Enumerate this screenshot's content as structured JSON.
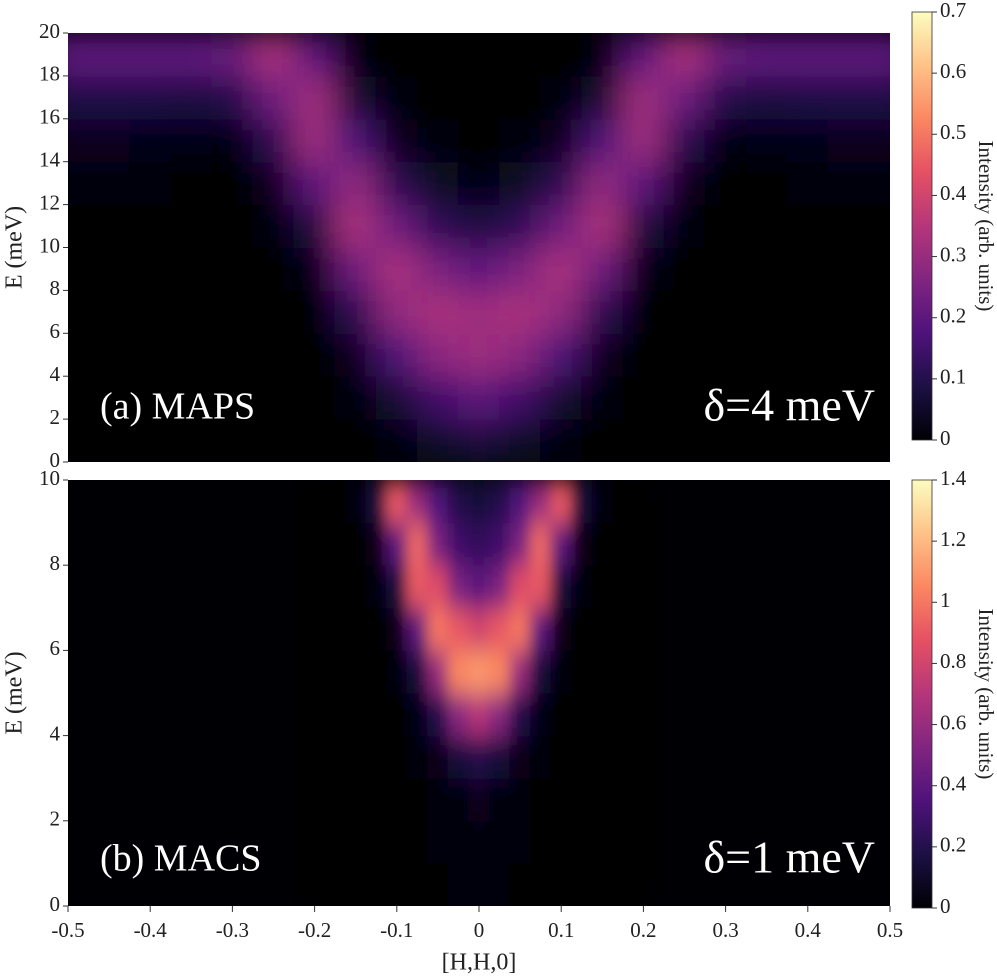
{
  "chart_data": [
    {
      "type": "heatmap",
      "annotation": "(a) MAPS",
      "resolution_label": "δ=4 meV",
      "ylabel": "E (meV)",
      "colorbar_label": "Intensity (arb. units)",
      "colormap": [
        "#000004",
        "#1c1044",
        "#4f127b",
        "#812581",
        "#b5367a",
        "#e55064",
        "#fb8761",
        "#fec287",
        "#fcfdbf"
      ],
      "xlim": [
        -0.5,
        0.5
      ],
      "ylim": [
        0,
        20
      ],
      "yticks": [
        0,
        2,
        4,
        6,
        8,
        10,
        12,
        14,
        16,
        18,
        20
      ],
      "clim": [
        0,
        0.7
      ],
      "cticks": [
        0,
        0.1,
        0.2,
        0.3,
        0.4,
        0.5,
        0.6,
        0.7
      ],
      "x": [
        -0.5,
        -0.45,
        -0.4,
        -0.35,
        -0.3,
        -0.25,
        -0.2,
        -0.15,
        -0.1,
        -0.05,
        0,
        0.05,
        0.1,
        0.15,
        0.2,
        0.25,
        0.3,
        0.35,
        0.4,
        0.45,
        0.5
      ],
      "y": [
        1,
        3,
        5,
        7,
        9,
        11,
        13,
        15,
        17,
        19
      ],
      "z": [
        [
          0,
          0,
          0,
          0,
          0,
          0,
          0,
          0,
          0.01,
          0.05,
          0.08,
          0.05,
          0.01,
          0,
          0,
          0,
          0,
          0,
          0,
          0,
          0
        ],
        [
          0,
          0,
          0,
          0,
          0,
          0,
          0,
          0.01,
          0.06,
          0.15,
          0.2,
          0.15,
          0.06,
          0.01,
          0,
          0,
          0,
          0,
          0,
          0,
          0
        ],
        [
          0,
          0,
          0,
          0,
          0,
          0,
          0,
          0.03,
          0.17,
          0.28,
          0.31,
          0.28,
          0.17,
          0.03,
          0,
          0,
          0,
          0,
          0,
          0,
          0
        ],
        [
          0,
          0,
          0,
          0,
          0,
          0,
          0,
          0.11,
          0.29,
          0.33,
          0.31,
          0.33,
          0.29,
          0.11,
          0,
          0,
          0,
          0,
          0,
          0,
          0
        ],
        [
          0,
          0,
          0,
          0,
          0,
          0,
          0.02,
          0.23,
          0.33,
          0.25,
          0.2,
          0.25,
          0.33,
          0.23,
          0.02,
          0,
          0,
          0,
          0,
          0,
          0
        ],
        [
          0,
          0,
          0,
          0,
          0,
          0.01,
          0.08,
          0.33,
          0.23,
          0.12,
          0.08,
          0.12,
          0.23,
          0.33,
          0.08,
          0.01,
          0,
          0,
          0,
          0,
          0
        ],
        [
          0.01,
          0.01,
          0.01,
          0,
          0,
          0.03,
          0.2,
          0.29,
          0.11,
          0.04,
          0.02,
          0.04,
          0.11,
          0.29,
          0.2,
          0.03,
          0,
          0,
          0.01,
          0.01,
          0.01
        ],
        [
          0.03,
          0.03,
          0.02,
          0.02,
          0.01,
          0.11,
          0.31,
          0.17,
          0.03,
          0.01,
          0,
          0.01,
          0.03,
          0.17,
          0.31,
          0.11,
          0.01,
          0.02,
          0.02,
          0.03,
          0.03
        ],
        [
          0.09,
          0.09,
          0.09,
          0.08,
          0.1,
          0.23,
          0.31,
          0.06,
          0.01,
          0,
          0,
          0,
          0.01,
          0.06,
          0.31,
          0.23,
          0.1,
          0.08,
          0.09,
          0.09,
          0.09
        ],
        [
          0.2,
          0.2,
          0.2,
          0.2,
          0.22,
          0.33,
          0.2,
          0.01,
          0,
          0,
          0,
          0,
          0,
          0.01,
          0.2,
          0.33,
          0.22,
          0.2,
          0.2,
          0.2,
          0.2
        ]
      ]
    },
    {
      "type": "heatmap",
      "annotation": "(b) MACS",
      "resolution_label": "δ=1 meV",
      "ylabel": "E (meV)",
      "xlabel": "[H,H,0]",
      "colorbar_label": "Intensity (arb. units)",
      "colormap": [
        "#000004",
        "#1c1044",
        "#4f127b",
        "#812581",
        "#b5367a",
        "#e55064",
        "#fb8761",
        "#fec287",
        "#fcfdbf"
      ],
      "xlim": [
        -0.5,
        0.5
      ],
      "ylim": [
        0,
        10
      ],
      "yticks": [
        0,
        2,
        4,
        6,
        8,
        10
      ],
      "xticks": [
        -0.5,
        -0.4,
        -0.3,
        -0.2,
        -0.1,
        0,
        0.1,
        0.2,
        0.3,
        0.4,
        0.5
      ],
      "clim": [
        0,
        1.4
      ],
      "cticks": [
        0,
        0.2,
        0.4,
        0.6,
        0.8,
        1,
        1.2,
        1.4
      ],
      "x": [
        -0.2,
        -0.175,
        -0.15,
        -0.125,
        -0.1,
        -0.075,
        -0.05,
        -0.025,
        0,
        0.025,
        0.05,
        0.075,
        0.1,
        0.125,
        0.15,
        0.175,
        0.2
      ],
      "y": [
        0.5,
        1.5,
        2.5,
        3.5,
        4.5,
        5.5,
        6.5,
        7.5,
        8.5,
        9.5
      ],
      "z": [
        [
          0,
          0,
          0,
          0,
          0,
          0,
          0,
          0.01,
          0.02,
          0.01,
          0,
          0,
          0,
          0,
          0,
          0,
          0
        ],
        [
          0,
          0,
          0,
          0,
          0,
          0,
          0.01,
          0.02,
          0.03,
          0.02,
          0.01,
          0,
          0,
          0,
          0,
          0,
          0
        ],
        [
          0,
          0,
          0,
          0,
          0,
          0,
          0.01,
          0.03,
          0.06,
          0.03,
          0.01,
          0,
          0,
          0,
          0,
          0,
          0
        ],
        [
          0,
          0,
          0,
          0,
          0,
          0.01,
          0.05,
          0.15,
          0.2,
          0.15,
          0.05,
          0.01,
          0,
          0,
          0,
          0,
          0
        ],
        [
          0,
          0,
          0,
          0,
          0,
          0.04,
          0.2,
          0.55,
          0.7,
          0.55,
          0.2,
          0.04,
          0,
          0,
          0,
          0,
          0
        ],
        [
          0,
          0,
          0,
          0,
          0.02,
          0.15,
          0.6,
          1.05,
          1.1,
          1.05,
          0.6,
          0.15,
          0.02,
          0,
          0,
          0,
          0
        ],
        [
          0,
          0,
          0,
          0,
          0.05,
          0.4,
          1.0,
          0.9,
          0.8,
          0.9,
          1.0,
          0.4,
          0.05,
          0,
          0,
          0,
          0
        ],
        [
          0,
          0,
          0,
          0.01,
          0.15,
          0.9,
          0.85,
          0.5,
          0.4,
          0.5,
          0.85,
          0.9,
          0.15,
          0.01,
          0,
          0,
          0
        ],
        [
          0,
          0,
          0,
          0.05,
          0.4,
          0.95,
          0.5,
          0.3,
          0.25,
          0.3,
          0.5,
          0.95,
          0.4,
          0.05,
          0,
          0,
          0
        ],
        [
          0,
          0,
          0.01,
          0.15,
          0.9,
          0.6,
          0.35,
          0.2,
          0.15,
          0.2,
          0.35,
          0.6,
          0.9,
          0.15,
          0.01,
          0,
          0
        ]
      ]
    }
  ]
}
